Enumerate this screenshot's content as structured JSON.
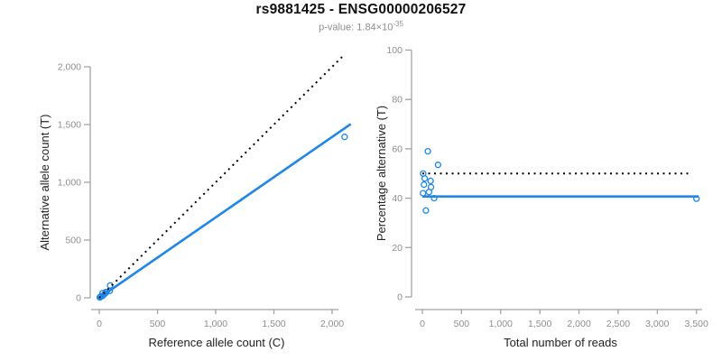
{
  "header": {
    "title": "rs9881425 - ENSG00000206527",
    "pvalue_prefix": "p-value: 1.84×10",
    "pvalue_exponent": "-35"
  },
  "colors": {
    "accent_blue": "#1f87e8",
    "line_black": "#000000",
    "axis_gray": "#a3a3a3",
    "tick_label_gray": "#8e8e8e",
    "axis_title_color": "#222222"
  },
  "chart_data": [
    {
      "type": "scatter",
      "name": "allele-counts-panel",
      "xlabel": "Reference allele count (C)",
      "ylabel": "Alternative allele count (T)",
      "xlim": [
        -80,
        2150
      ],
      "ylim": [
        -110,
        2140
      ],
      "xticks": [
        0,
        500,
        1000,
        1500,
        2000
      ],
      "xtick_labels": [
        "0",
        "500",
        "1,000",
        "1,500",
        "2,000"
      ],
      "yticks": [
        0,
        500,
        1000,
        1500,
        2000
      ],
      "ytick_labels": [
        "0",
        "500",
        "1,000",
        "1,500",
        "2,000"
      ],
      "grid": false,
      "legend": "none",
      "marker": {
        "shape": "open-circle",
        "color": "#1f87e8"
      },
      "points": [
        [
          28.7,
          41.3
        ],
        [
          93,
          107
        ],
        [
          5,
          5
        ],
        [
          15.6,
          14.4
        ],
        [
          55.7,
          49.4
        ],
        [
          10.9,
          9.1
        ],
        [
          61.1,
          49
        ],
        [
          4.6,
          3.4
        ],
        [
          48.9,
          36.1
        ],
        [
          90,
          60
        ],
        [
          29.3,
          15.8
        ],
        [
          2107,
          1393
        ]
      ],
      "lines": [
        {
          "name": "fitted-line",
          "style": "solid",
          "color": "#1f87e8",
          "from": [
            0,
            0
          ],
          "to": [
            2160,
            1504
          ]
        },
        {
          "name": "identity-line",
          "style": "dotted",
          "color": "#000000",
          "from": [
            0,
            0
          ],
          "to": [
            2110,
            2110
          ]
        }
      ]
    },
    {
      "type": "scatter",
      "name": "percentage-alternative-panel",
      "xlabel": "Total number of reads",
      "ylabel": "Percentage alternative (T)",
      "xlim": [
        -140,
        3620
      ],
      "ylim": [
        0,
        100
      ],
      "xticks": [
        0,
        500,
        1000,
        1500,
        2000,
        2500,
        3000,
        3500
      ],
      "xtick_labels": [
        "0",
        "500",
        "1,000",
        "1,500",
        "2,000",
        "2,500",
        "3,000",
        "3,500"
      ],
      "yticks": [
        0,
        20,
        40,
        60,
        80,
        100
      ],
      "ytick_labels": [
        "0",
        "20",
        "40",
        "60",
        "80",
        "100"
      ],
      "grid": false,
      "legend": "none",
      "marker": {
        "shape": "open-circle",
        "color": "#1f87e8"
      },
      "points": [
        [
          70,
          59
        ],
        [
          200,
          53.5
        ],
        [
          10,
          50
        ],
        [
          30,
          48
        ],
        [
          105,
          47
        ],
        [
          20,
          45.5
        ],
        [
          110,
          44.5
        ],
        [
          8,
          42
        ],
        [
          85,
          42.5
        ],
        [
          150,
          40
        ],
        [
          45,
          35
        ],
        [
          3500,
          39.8
        ]
      ],
      "lines": [
        {
          "name": "fitted-percentage-line",
          "style": "solid",
          "color": "#1f87e8",
          "from": [
            0,
            40.7
          ],
          "to": [
            3530,
            40.7
          ]
        },
        {
          "name": "fifty-percent-reference-line",
          "style": "dotted",
          "color": "#000000",
          "from": [
            0,
            50
          ],
          "to": [
            3440,
            50
          ]
        }
      ]
    }
  ]
}
